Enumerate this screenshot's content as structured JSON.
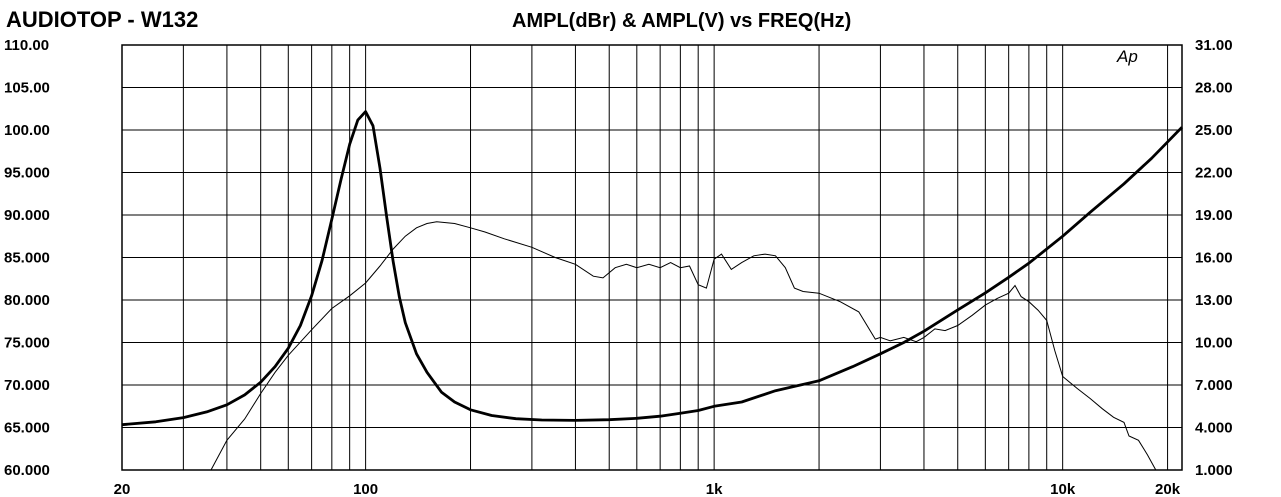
{
  "chart_data": {
    "type": "line",
    "title_left": "AUDIOTOP - W132",
    "title_right": "AMPL(dBr) & AMPL(V) vs FREQ(Hz)",
    "watermark": "Ap",
    "x_scale": "log",
    "xlim": [
      20,
      22000
    ],
    "x_tick_values": [
      20,
      100,
      1000,
      10000,
      20000
    ],
    "x_tick_labels": [
      "20",
      "100",
      "1k",
      "10k",
      "20k"
    ],
    "y_left_lim": [
      60,
      110
    ],
    "y_left_tick_labels": [
      "110.00",
      "105.00",
      "100.00",
      "95.000",
      "90.000",
      "85.000",
      "80.000",
      "75.000",
      "70.000",
      "65.000",
      "60.000"
    ],
    "y_right_lim": [
      1,
      31
    ],
    "y_right_tick_labels": [
      "31.00",
      "28.00",
      "25.00",
      "22.00",
      "19.00",
      "16.00",
      "13.00",
      "10.00",
      "7.000",
      "4.000",
      "1.000"
    ],
    "grid": true,
    "series": [
      {
        "axis": "left",
        "style": "thin",
        "points": [
          [
            36,
            60
          ],
          [
            40,
            63.5
          ],
          [
            45,
            66
          ],
          [
            50,
            69
          ],
          [
            55,
            71.5
          ],
          [
            60,
            73.5
          ],
          [
            70,
            76.5
          ],
          [
            80,
            79
          ],
          [
            90,
            80.5
          ],
          [
            100,
            82
          ],
          [
            110,
            84
          ],
          [
            120,
            86
          ],
          [
            130,
            87.5
          ],
          [
            140,
            88.5
          ],
          [
            150,
            89
          ],
          [
            160,
            89.2
          ],
          [
            180,
            89
          ],
          [
            200,
            88.5
          ],
          [
            220,
            88
          ],
          [
            250,
            87.2
          ],
          [
            300,
            86.2
          ],
          [
            350,
            85
          ],
          [
            400,
            84.2
          ],
          [
            450,
            82.8
          ],
          [
            480,
            82.6
          ],
          [
            520,
            83.8
          ],
          [
            560,
            84.2
          ],
          [
            600,
            83.8
          ],
          [
            650,
            84.2
          ],
          [
            700,
            83.8
          ],
          [
            750,
            84.4
          ],
          [
            800,
            83.8
          ],
          [
            850,
            84
          ],
          [
            900,
            81.8
          ],
          [
            950,
            81.4
          ],
          [
            1000,
            84.8
          ],
          [
            1050,
            85.4
          ],
          [
            1120,
            83.6
          ],
          [
            1200,
            84.4
          ],
          [
            1300,
            85.2
          ],
          [
            1400,
            85.4
          ],
          [
            1500,
            85.2
          ],
          [
            1600,
            83.8
          ],
          [
            1700,
            81.4
          ],
          [
            1800,
            81
          ],
          [
            2000,
            80.8
          ],
          [
            2300,
            79.8
          ],
          [
            2600,
            78.6
          ],
          [
            2900,
            75.4
          ],
          [
            3000,
            75.6
          ],
          [
            3200,
            75.2
          ],
          [
            3500,
            75.6
          ],
          [
            3800,
            75.1
          ],
          [
            4000,
            75.6
          ],
          [
            4300,
            76.6
          ],
          [
            4600,
            76.4
          ],
          [
            5000,
            77
          ],
          [
            5500,
            78.2
          ],
          [
            6000,
            79.4
          ],
          [
            6500,
            80.2
          ],
          [
            7000,
            80.8
          ],
          [
            7300,
            81.7
          ],
          [
            7600,
            80.4
          ],
          [
            8000,
            79.8
          ],
          [
            8500,
            78.8
          ],
          [
            9000,
            77.6
          ],
          [
            9500,
            74
          ],
          [
            10000,
            71
          ],
          [
            11000,
            69.6
          ],
          [
            12000,
            68.4
          ],
          [
            13000,
            67.2
          ],
          [
            14000,
            66.2
          ],
          [
            15000,
            65.6
          ],
          [
            15500,
            64
          ],
          [
            16500,
            63.5
          ],
          [
            17500,
            61.8
          ],
          [
            18500,
            60
          ]
        ]
      },
      {
        "axis": "right",
        "style": "thick",
        "points": [
          [
            20,
            4.2
          ],
          [
            25,
            4.4
          ],
          [
            30,
            4.7
          ],
          [
            35,
            5.1
          ],
          [
            40,
            5.6
          ],
          [
            45,
            6.3
          ],
          [
            50,
            7.2
          ],
          [
            55,
            8.3
          ],
          [
            60,
            9.6
          ],
          [
            65,
            11.2
          ],
          [
            70,
            13.3
          ],
          [
            75,
            15.8
          ],
          [
            80,
            18.7
          ],
          [
            85,
            21.5
          ],
          [
            90,
            24
          ],
          [
            95,
            25.7
          ],
          [
            100,
            26.3
          ],
          [
            105,
            25.3
          ],
          [
            110,
            22.3
          ],
          [
            115,
            18.8
          ],
          [
            120,
            15.7
          ],
          [
            125,
            13.2
          ],
          [
            130,
            11.4
          ],
          [
            140,
            9.2
          ],
          [
            150,
            7.9
          ],
          [
            165,
            6.5
          ],
          [
            180,
            5.8
          ],
          [
            200,
            5.25
          ],
          [
            230,
            4.85
          ],
          [
            270,
            4.62
          ],
          [
            320,
            4.53
          ],
          [
            400,
            4.5
          ],
          [
            500,
            4.55
          ],
          [
            600,
            4.65
          ],
          [
            700,
            4.8
          ],
          [
            800,
            5
          ],
          [
            900,
            5.2
          ],
          [
            1000,
            5.5
          ],
          [
            1200,
            5.8
          ],
          [
            1500,
            6.6
          ],
          [
            1700,
            6.9
          ],
          [
            2000,
            7.3
          ],
          [
            2500,
            8.3
          ],
          [
            3000,
            9.2
          ],
          [
            3500,
            10
          ],
          [
            4000,
            10.8
          ],
          [
            5000,
            12.3
          ],
          [
            6000,
            13.5
          ],
          [
            7000,
            14.6
          ],
          [
            8000,
            15.6
          ],
          [
            10000,
            17.5
          ],
          [
            12000,
            19.2
          ],
          [
            15000,
            21.2
          ],
          [
            18000,
            23
          ],
          [
            22000,
            25.2
          ]
        ]
      }
    ]
  }
}
